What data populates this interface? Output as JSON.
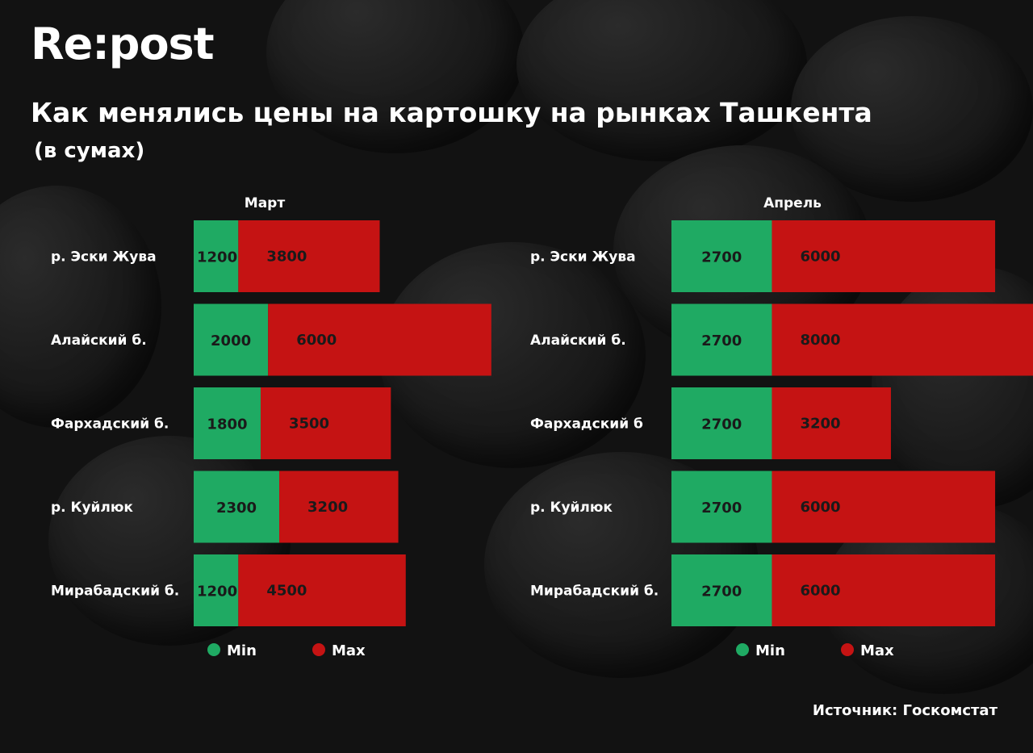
{
  "logo": "Re:post",
  "title": "Как менялись цены на картошку на рынках Ташкента",
  "subtitle": "(в сумах)",
  "source": "Источник: Госкомстат",
  "colors": {
    "min": "#1faa63",
    "max": "#c51313",
    "background": "#121212"
  },
  "chart_data": [
    {
      "type": "bar",
      "orientation": "horizontal",
      "stacked": true,
      "title": "Март",
      "categories": [
        "р. Эски Жува",
        "Алайский б.",
        "Фархадский б.",
        "р. Куйлюк",
        "Мирабадский б."
      ],
      "series": [
        {
          "name": "Min",
          "values": [
            1200,
            2000,
            1800,
            2300,
            1200
          ]
        },
        {
          "name": "Max",
          "values": [
            3800,
            6000,
            3500,
            3200,
            4500
          ]
        }
      ],
      "legend": "bottom",
      "grid": false
    },
    {
      "type": "bar",
      "orientation": "horizontal",
      "stacked": true,
      "title": "Апрель",
      "categories": [
        "р. Эски Жува",
        "Алайский б.",
        "Фархадский б",
        "р. Куйлюк",
        "Мирабадский б."
      ],
      "series": [
        {
          "name": "Min",
          "values": [
            2700,
            2700,
            2700,
            2700,
            2700
          ]
        },
        {
          "name": "Max",
          "values": [
            6000,
            8000,
            3200,
            6000,
            6000
          ]
        }
      ],
      "legend": "bottom",
      "grid": false
    }
  ]
}
